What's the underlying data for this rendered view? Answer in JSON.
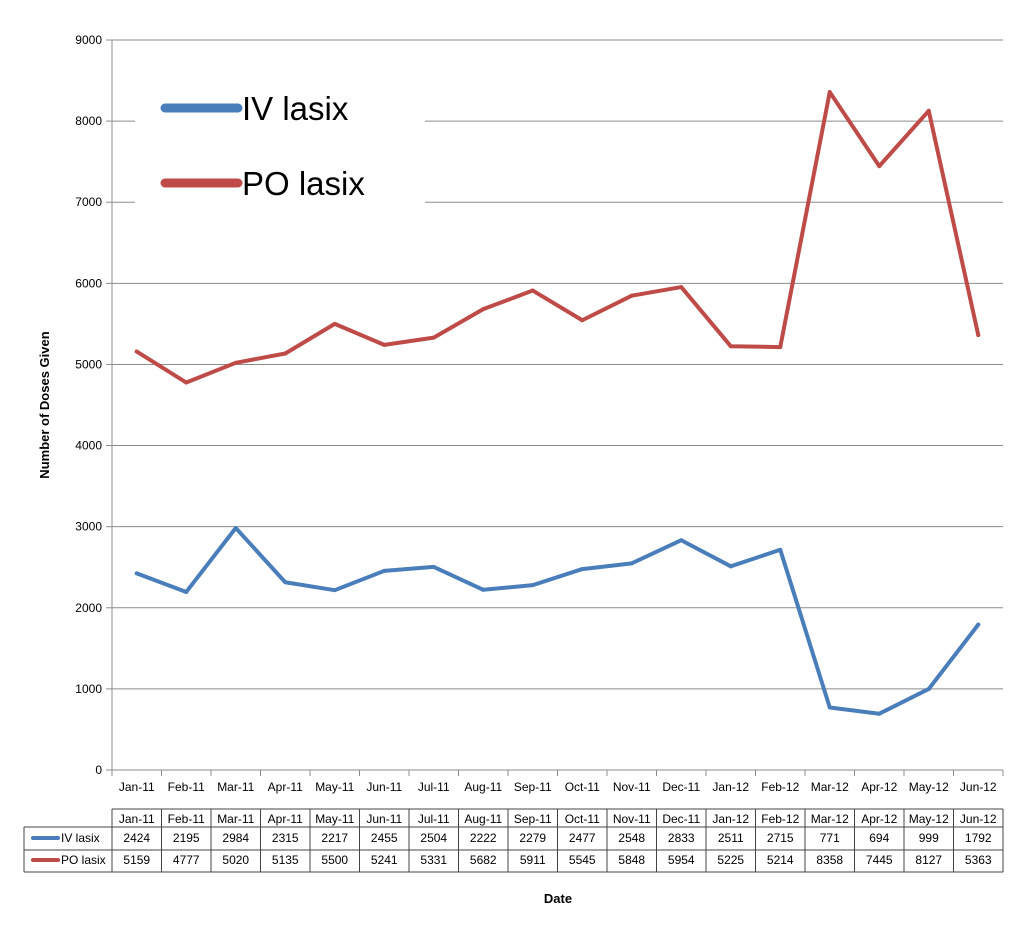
{
  "chart_data": {
    "type": "line",
    "title": "",
    "xlabel": "Date",
    "ylabel": "Number of Doses Given",
    "ylim": [
      0,
      9000
    ],
    "yticks": [
      0,
      1000,
      2000,
      3000,
      4000,
      5000,
      6000,
      7000,
      8000,
      9000
    ],
    "grid": true,
    "legend_position": "top-left",
    "categories": [
      "Jan-11",
      "Feb-11",
      "Mar-11",
      "Apr-11",
      "May-11",
      "Jun-11",
      "Jul-11",
      "Aug-11",
      "Sep-11",
      "Oct-11",
      "Nov-11",
      "Dec-11",
      "Jan-12",
      "Feb-12",
      "Mar-12",
      "Apr-12",
      "May-12",
      "Jun-12"
    ],
    "series": [
      {
        "name": "IV lasix",
        "color": "#4a7ebb",
        "values": [
          2424,
          2195,
          2984,
          2315,
          2217,
          2455,
          2504,
          2222,
          2279,
          2477,
          2548,
          2833,
          2511,
          2715,
          771,
          694,
          999,
          1792
        ]
      },
      {
        "name": "PO lasix",
        "color": "#be4b48",
        "values": [
          5159,
          4777,
          5020,
          5135,
          5500,
          5241,
          5331,
          5682,
          5911,
          5545,
          5848,
          5954,
          5225,
          5214,
          8358,
          7445,
          8127,
          5363
        ]
      }
    ],
    "data_table": true
  }
}
